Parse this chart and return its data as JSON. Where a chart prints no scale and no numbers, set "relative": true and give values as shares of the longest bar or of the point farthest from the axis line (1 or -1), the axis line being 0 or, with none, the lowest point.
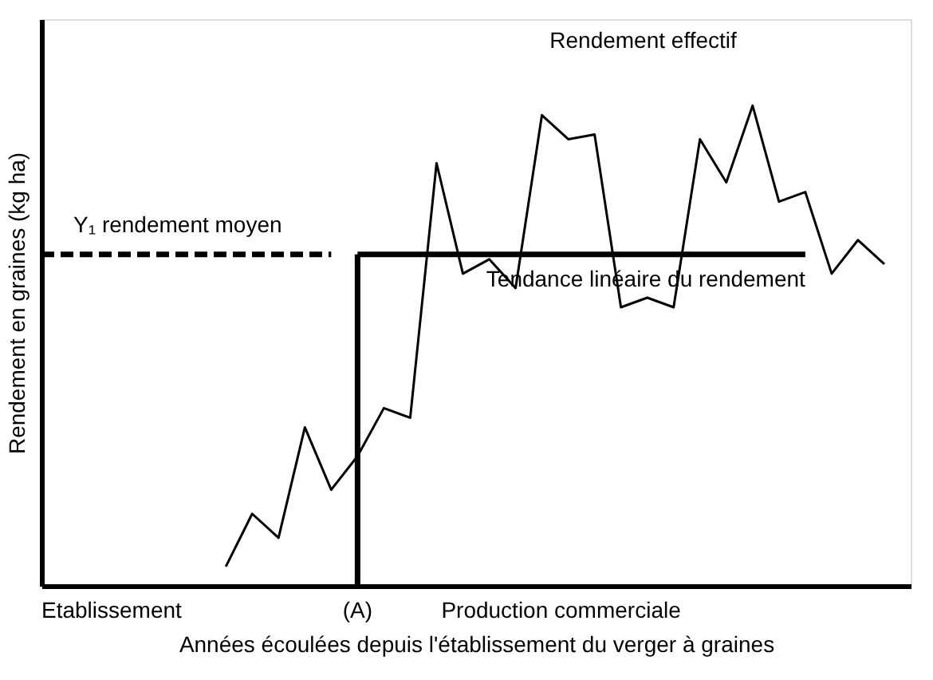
{
  "chart_data": {
    "type": "line",
    "relative": true,
    "xlabel": "Années écoulées depuis l'établissement du verger à graines",
    "ylabel": "Rendement en graines (kg ha)",
    "categories": [
      null,
      null,
      null,
      null,
      null,
      null,
      null,
      null,
      null,
      null,
      null,
      null,
      null,
      null,
      null,
      null,
      null,
      null,
      null,
      null,
      null,
      null,
      null,
      null,
      null,
      null,
      null,
      null,
      null,
      null,
      null,
      null,
      null,
      null
    ],
    "series": [
      {
        "name": "Rendement effectif",
        "color": "#000000",
        "line_style": "solid",
        "values": [
          null,
          null,
          null,
          null,
          null,
          null,
          null,
          0.04,
          0.15,
          0.1,
          0.33,
          0.2,
          0.27,
          0.37,
          0.35,
          0.88,
          0.65,
          0.68,
          0.62,
          0.98,
          0.93,
          0.94,
          0.58,
          0.6,
          0.58,
          0.93,
          0.84,
          1.0,
          0.8,
          0.82,
          0.65,
          0.72,
          0.67,
          null
        ]
      },
      {
        "name": "Y₁ rendement moyen",
        "color": "#000000",
        "line_style": "dashed",
        "values": [
          0.69,
          0.69,
          0.69,
          0.69,
          0.69,
          0.69,
          0.69,
          0.69,
          0.69,
          0.69,
          0.69,
          0.69,
          null,
          null,
          null,
          null,
          null,
          null,
          null,
          null,
          null,
          null,
          null,
          null,
          null,
          null,
          null,
          null,
          null,
          null,
          null,
          null,
          null,
          null
        ]
      },
      {
        "name": "Tendance linéaire du rendement",
        "color": "#000000",
        "line_style": "solid",
        "values": [
          null,
          null,
          null,
          null,
          null,
          null,
          null,
          null,
          null,
          null,
          null,
          null,
          0.69,
          0.69,
          0.69,
          0.69,
          0.69,
          0.69,
          0.69,
          0.69,
          0.69,
          0.69,
          0.69,
          0.69,
          0.69,
          0.69,
          0.69,
          0.69,
          0.69,
          0.69,
          null,
          null,
          null,
          null
        ]
      }
    ],
    "ref_lines": [
      {
        "axis": "x",
        "label": "(A)",
        "color": "#000000"
      }
    ],
    "annotations": [
      "Etablissement",
      "Production commerciale"
    ]
  }
}
